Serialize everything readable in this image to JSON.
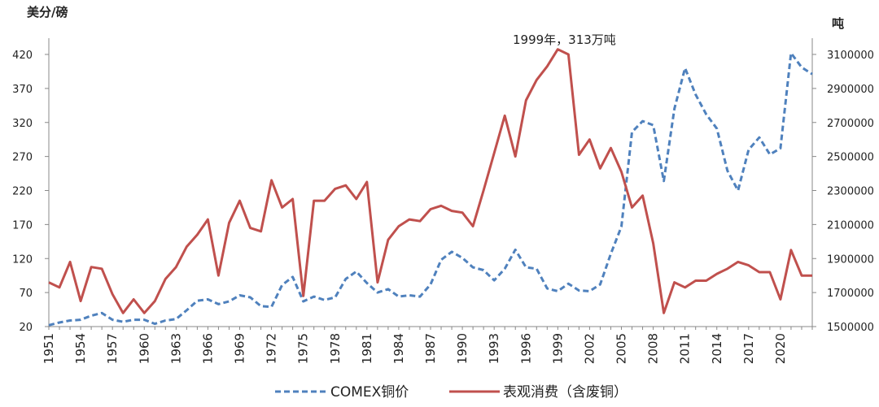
{
  "chart_data": {
    "type": "line",
    "left_axis": {
      "title": "美分/磅",
      "range": [
        20,
        420
      ],
      "ticks": [
        20,
        70,
        120,
        170,
        220,
        270,
        320,
        370,
        420
      ]
    },
    "right_axis": {
      "title": "吨",
      "range": [
        1500000,
        3100000
      ],
      "ticks": [
        1500000,
        1700000,
        1900000,
        2100000,
        2300000,
        2500000,
        2700000,
        2900000,
        3100000
      ]
    },
    "x_ticks": [
      1951,
      1954,
      1957,
      1960,
      1963,
      1966,
      1969,
      1972,
      1975,
      1978,
      1981,
      1984,
      1987,
      1990,
      1993,
      1996,
      1999,
      2002,
      2005,
      2008,
      2011,
      2014,
      2017,
      2020
    ],
    "x_range": [
      1951,
      2023
    ],
    "annotation": {
      "text": "1999年，313万吨",
      "year": 1999
    },
    "grid": false,
    "legend_position": "bottom",
    "series": [
      {
        "name": "COMEX铜价",
        "axis": "left",
        "style": "dashed",
        "color": "#4F81BD",
        "x": [
          1951,
          1952,
          1953,
          1954,
          1955,
          1956,
          1957,
          1958,
          1959,
          1960,
          1961,
          1962,
          1963,
          1964,
          1965,
          1966,
          1967,
          1968,
          1969,
          1970,
          1971,
          1972,
          1973,
          1974,
          1975,
          1976,
          1977,
          1978,
          1979,
          1980,
          1981,
          1982,
          1983,
          1984,
          1985,
          1986,
          1987,
          1988,
          1989,
          1990,
          1991,
          1992,
          1993,
          1994,
          1995,
          1996,
          1997,
          1998,
          1999,
          2000,
          2001,
          2002,
          2003,
          2004,
          2005,
          2006,
          2007,
          2008,
          2009,
          2010,
          2011,
          2012,
          2013,
          2014,
          2015,
          2016,
          2017,
          2018,
          2019,
          2020,
          2021,
          2022,
          2023
        ],
        "y": [
          22,
          26,
          29,
          30,
          36,
          40,
          30,
          27,
          30,
          30,
          24,
          29,
          31,
          44,
          58,
          60,
          53,
          57,
          66,
          63,
          50,
          49,
          81,
          93,
          57,
          64,
          59,
          63,
          90,
          101,
          84,
          70,
          75,
          64,
          66,
          64,
          82,
          118,
          130,
          121,
          107,
          103,
          88,
          105,
          133,
          107,
          105,
          76,
          72,
          83,
          73,
          72,
          82,
          127,
          167,
          306,
          322,
          316,
          234,
          340,
          400,
          361,
          332,
          311,
          249,
          220,
          280,
          298,
          273,
          282,
          422,
          401,
          391
        ]
      },
      {
        "name": "表观消费（含废铜）",
        "axis": "right",
        "style": "solid",
        "color": "#C0504D",
        "x": [
          1951,
          1952,
          1953,
          1954,
          1955,
          1956,
          1957,
          1958,
          1959,
          1960,
          1961,
          1962,
          1963,
          1964,
          1965,
          1966,
          1967,
          1968,
          1969,
          1970,
          1971,
          1972,
          1973,
          1974,
          1975,
          1976,
          1977,
          1978,
          1979,
          1980,
          1981,
          1982,
          1983,
          1984,
          1985,
          1986,
          1987,
          1988,
          1989,
          1990,
          1991,
          1992,
          1993,
          1994,
          1995,
          1996,
          1997,
          1998,
          1999,
          2000,
          2001,
          2002,
          2003,
          2004,
          2005,
          2006,
          2007,
          2008,
          2009,
          2010,
          2011,
          2012,
          2013,
          2014,
          2015,
          2016,
          2017,
          2018,
          2019,
          2020,
          2021,
          2022,
          2023
        ],
        "y": [
          1760000,
          1730000,
          1880000,
          1650000,
          1850000,
          1840000,
          1690000,
          1580000,
          1660000,
          1580000,
          1650000,
          1780000,
          1850000,
          1970000,
          2040000,
          2130000,
          1800000,
          2110000,
          2240000,
          2080000,
          2060000,
          2360000,
          2200000,
          2250000,
          1680000,
          2240000,
          2240000,
          2310000,
          2330000,
          2250000,
          2350000,
          1760000,
          2010000,
          2090000,
          2130000,
          2120000,
          2190000,
          2210000,
          2180000,
          2170000,
          2090000,
          2300000,
          2520000,
          2740000,
          2500000,
          2830000,
          2950000,
          3030000,
          3130000,
          3100000,
          2510000,
          2600000,
          2430000,
          2550000,
          2410000,
          2200000,
          2270000,
          1990000,
          1580000,
          1760000,
          1730000,
          1770000,
          1770000,
          1810000,
          1840000,
          1880000,
          1860000,
          1820000,
          1820000,
          1660000,
          1950000,
          1800000,
          1800000
        ]
      }
    ]
  }
}
